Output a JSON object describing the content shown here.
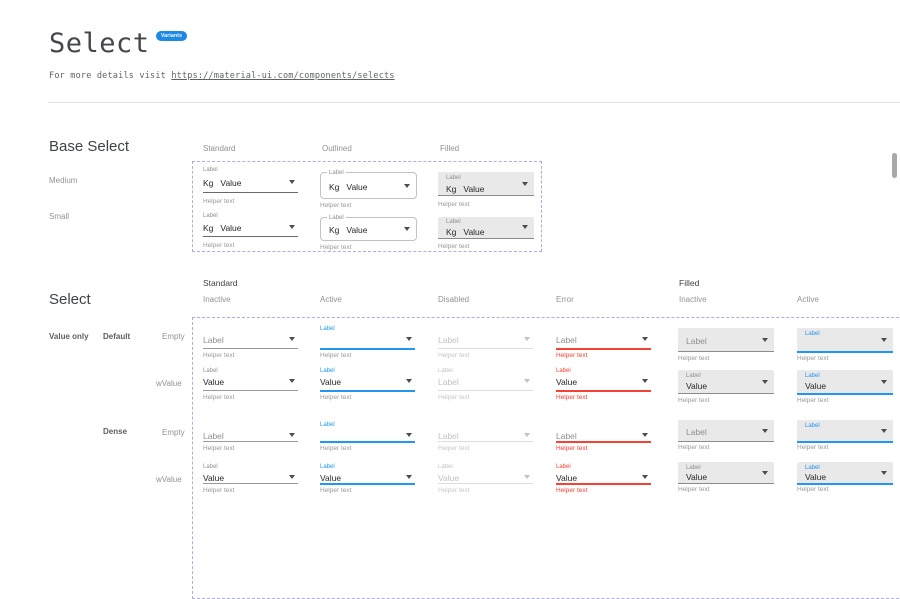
{
  "header": {
    "title": "Select",
    "badge": "Variants",
    "subtitle_prefix": "For more details visit ",
    "subtitle_link": "https://material-ui.com/components/selects"
  },
  "base": {
    "heading": "Base Select",
    "col_labels": [
      "Standard",
      "Outlined",
      "Filled"
    ],
    "row_labels": [
      "Medium",
      "Small"
    ],
    "cells": [
      {
        "variant": "standard",
        "size": "medium",
        "label": "Label",
        "adornment": "Kg",
        "value": "Value",
        "helper": "Helper text"
      },
      {
        "variant": "outlined",
        "size": "medium",
        "label": "Label",
        "adornment": "Kg",
        "value": "Value",
        "helper": "Helper text"
      },
      {
        "variant": "filled",
        "size": "medium",
        "label": "Label",
        "adornment": "Kg",
        "value": "Value",
        "helper": "Helper text"
      },
      {
        "variant": "standard",
        "size": "small",
        "label": "Label",
        "adornment": "Kg",
        "value": "Value",
        "helper": "Helper text"
      },
      {
        "variant": "outlined",
        "size": "small",
        "label": "Label",
        "adornment": "Kg",
        "value": "Value",
        "helper": "Helper text"
      },
      {
        "variant": "filled",
        "size": "small",
        "label": "Label",
        "adornment": "Kg",
        "value": "Value",
        "helper": "Helper text"
      }
    ]
  },
  "grid": {
    "heading": "Select",
    "group_labels": [
      "Standard",
      "Filled"
    ],
    "state_labels": [
      "Inactive",
      "Active",
      "Disabled",
      "Error",
      "Inactive",
      "Active"
    ],
    "side_labels": {
      "value_only": "Value only",
      "default_label": "Default",
      "empty1": "Empty",
      "wvalue1": "wValue",
      "dense": "Dense",
      "empty2": "Empty",
      "wvalue2": "wValue"
    },
    "rows": [
      {
        "dense": false,
        "cells": [
          {
            "variant": "standard",
            "state": "inactive",
            "value": "Label",
            "placeholder": true,
            "helper": "Helper text"
          },
          {
            "variant": "standard",
            "state": "active",
            "label": "Label",
            "value": "",
            "helper": "Helper text"
          },
          {
            "variant": "standard",
            "state": "disabled",
            "value": "Label",
            "helper": "Helper text"
          },
          {
            "variant": "standard",
            "state": "error",
            "value": "Label",
            "placeholder": true,
            "helper": "Helper text"
          },
          {
            "variant": "filled",
            "state": "inactive",
            "value": "Label",
            "placeholder": true,
            "center": true,
            "helper": "Helper text"
          },
          {
            "variant": "filled",
            "state": "active",
            "label": "Label",
            "value": "",
            "helper": "Helper text"
          }
        ]
      },
      {
        "dense": false,
        "cells": [
          {
            "variant": "standard",
            "state": "inactive",
            "label": "Label",
            "value": "Value",
            "helper": "Helper text"
          },
          {
            "variant": "standard",
            "state": "active",
            "label": "Label",
            "value": "Value",
            "helper": "Helper text"
          },
          {
            "variant": "standard",
            "state": "disabled",
            "label": "Label",
            "value": "Label",
            "helper": "Helper text"
          },
          {
            "variant": "standard",
            "state": "error",
            "label": "Label",
            "value": "Value",
            "helper": "Helper text"
          },
          {
            "variant": "filled",
            "state": "inactive",
            "label": "Label",
            "value": "Value",
            "helper": "Helper text"
          },
          {
            "variant": "filled",
            "state": "active",
            "label": "Label",
            "value": "Value",
            "helper": "Helper text"
          }
        ]
      },
      {
        "dense": true,
        "cells": [
          {
            "variant": "standard",
            "state": "inactive",
            "value": "Label",
            "placeholder": true,
            "helper": "Helper text"
          },
          {
            "variant": "standard",
            "state": "active",
            "label": "Label",
            "value": "",
            "helper": "Helper text"
          },
          {
            "variant": "standard",
            "state": "disabled",
            "value": "Label",
            "helper": "Helper text"
          },
          {
            "variant": "standard",
            "state": "error",
            "value": "Label",
            "placeholder": true,
            "helper": "Helper text"
          },
          {
            "variant": "filled",
            "state": "inactive",
            "value": "Label",
            "placeholder": true,
            "center": true,
            "helper": "Helper text"
          },
          {
            "variant": "filled",
            "state": "active",
            "label": "Label",
            "value": "",
            "helper": "Helper text"
          }
        ]
      },
      {
        "dense": true,
        "cells": [
          {
            "variant": "standard",
            "state": "inactive",
            "label": "Label",
            "value": "Value",
            "helper": "Helper text"
          },
          {
            "variant": "standard",
            "state": "active",
            "label": "Label",
            "value": "Value",
            "helper": "Helper text"
          },
          {
            "variant": "standard",
            "state": "disabled",
            "label": "Label",
            "value": "Value",
            "helper": "Helper text"
          },
          {
            "variant": "standard",
            "state": "error",
            "label": "Label",
            "value": "Value",
            "helper": "Helper text"
          },
          {
            "variant": "filled",
            "state": "inactive",
            "label": "Label",
            "value": "Value",
            "helper": "Helper text"
          },
          {
            "variant": "filled",
            "state": "active",
            "label": "Label",
            "value": "Value",
            "helper": "Helper text"
          }
        ]
      }
    ]
  },
  "colors": {
    "badge_blue": "#1e88e5",
    "active_blue": "#2196f3",
    "error_red": "#f44336",
    "filled_bg": "#e9e9e9",
    "dashed_frame": "#abaee6",
    "underline_grey": "#9a9a9a"
  }
}
